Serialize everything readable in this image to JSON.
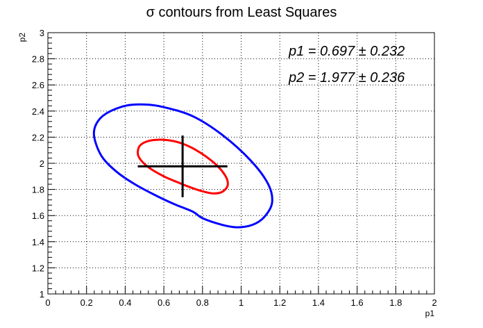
{
  "chart_data": {
    "type": "scatter",
    "title": "σ contours from Least Squares",
    "xlabel": "p1",
    "ylabel": "p2",
    "xlim": [
      0,
      2
    ],
    "ylim": [
      1,
      3
    ],
    "x_ticks": [
      "0",
      "0.2",
      "0.4",
      "0.6",
      "0.8",
      "1",
      "1.2",
      "1.4",
      "1.6",
      "1.8",
      "2"
    ],
    "y_ticks": [
      "1",
      "1.2",
      "1.4",
      "1.6",
      "1.8",
      "2",
      "2.2",
      "2.4",
      "2.6",
      "2.8",
      "3"
    ],
    "grid": true,
    "best_fit": {
      "p1": 0.697,
      "p1_err": 0.232,
      "p2": 1.977,
      "p2_err": 0.236
    },
    "annotations": [
      "p1 = 0.697 ± 0.232",
      "p2 = 1.977 ± 0.236"
    ],
    "series": [
      {
        "color": "#0000ff",
        "x": [
          0.75,
          0.65,
          0.55,
          0.45,
          0.36,
          0.28,
          0.24,
          0.25,
          0.3,
          0.4,
          0.5,
          0.6,
          0.75,
          0.9,
          1.05,
          1.14,
          1.16,
          1.12,
          1.06,
          0.98,
          0.9,
          0.8
        ],
        "y": [
          1.63,
          1.69,
          1.76,
          1.84,
          1.93,
          2.05,
          2.2,
          2.3,
          2.38,
          2.44,
          2.45,
          2.43,
          2.36,
          2.22,
          2.02,
          1.84,
          1.7,
          1.59,
          1.53,
          1.51,
          1.53,
          1.58
        ]
      },
      {
        "color": "#ff0000",
        "x": [
          0.68,
          0.6,
          0.52,
          0.47,
          0.47,
          0.5,
          0.56,
          0.65,
          0.73,
          0.8,
          0.87,
          0.92,
          0.93,
          0.9,
          0.85,
          0.79,
          0.73
        ],
        "y": [
          1.85,
          1.9,
          1.97,
          2.05,
          2.12,
          2.16,
          2.18,
          2.17,
          2.13,
          2.07,
          1.99,
          1.9,
          1.83,
          1.78,
          1.77,
          1.79,
          1.82
        ]
      }
    ],
    "marker": {
      "color": "#000000"
    }
  }
}
